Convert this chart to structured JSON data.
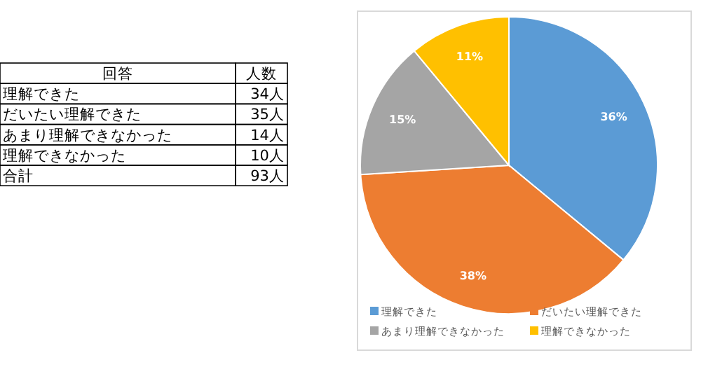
{
  "chart_data": {
    "type": "pie",
    "categories": [
      "理解できた",
      "だいたい理解できた",
      "あまり理解できなかった",
      "理解できなかった"
    ],
    "values": [
      36,
      38,
      15,
      11
    ],
    "value_labels": [
      "36%",
      "38%",
      "15%",
      "11%"
    ],
    "colors": [
      "#5b9bd5",
      "#ed7d31",
      "#a5a5a5",
      "#ffc000"
    ],
    "legend": "bottom",
    "annotations": [
      "回答",
      "人数",
      "34人",
      "35人",
      "14人",
      "10人",
      "合計",
      "93人"
    ]
  }
}
